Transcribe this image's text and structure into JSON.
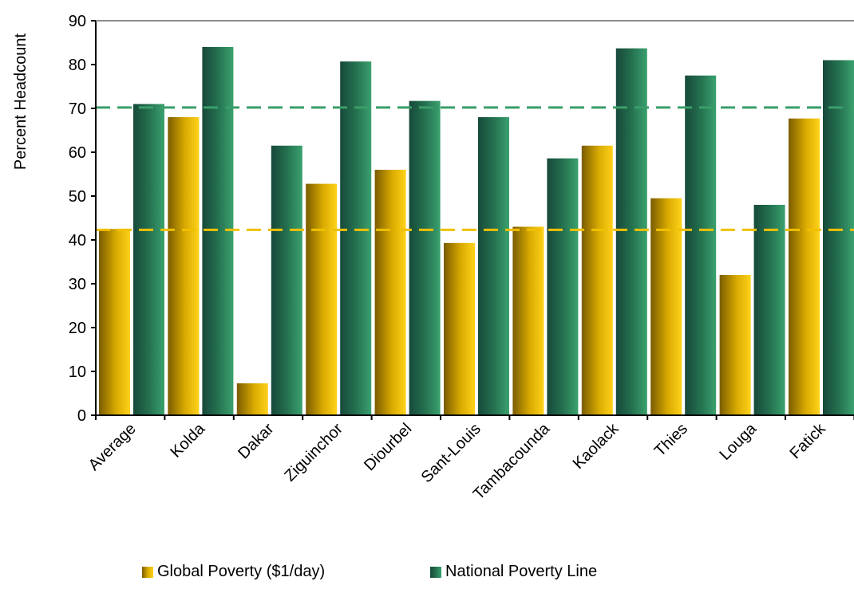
{
  "chart_data": {
    "type": "bar",
    "ylabel": "Percent Headcount",
    "ylim": [
      0,
      90
    ],
    "yticks": [
      0,
      10,
      20,
      30,
      40,
      50,
      60,
      70,
      80,
      90
    ],
    "categories": [
      "Average",
      "Kolda",
      "Dakar",
      "Ziguinchor",
      "Diourbel",
      "Sant-Louis",
      "Tambacounda",
      "Kaolack",
      "Thies",
      "Louga",
      "Fatick"
    ],
    "series": [
      {
        "name": "Global Poverty ($1/day)",
        "color": "#e6b800",
        "values": [
          42.5,
          68.0,
          7.3,
          52.8,
          56.0,
          39.3,
          43.0,
          61.5,
          49.5,
          32.0,
          67.7
        ]
      },
      {
        "name": "National Poverty Line",
        "color": "#2e8b57",
        "values": [
          71.0,
          84.0,
          61.5,
          80.7,
          71.7,
          68.0,
          58.6,
          83.7,
          77.5,
          48.0,
          81.0
        ]
      }
    ],
    "reference_lines": [
      {
        "value": 42.3,
        "color": "#f0c000",
        "style": "dashed"
      },
      {
        "value": 70.2,
        "color": "#3a9e6a",
        "style": "dashed"
      }
    ],
    "grid": false,
    "legend_position": "bottom"
  }
}
